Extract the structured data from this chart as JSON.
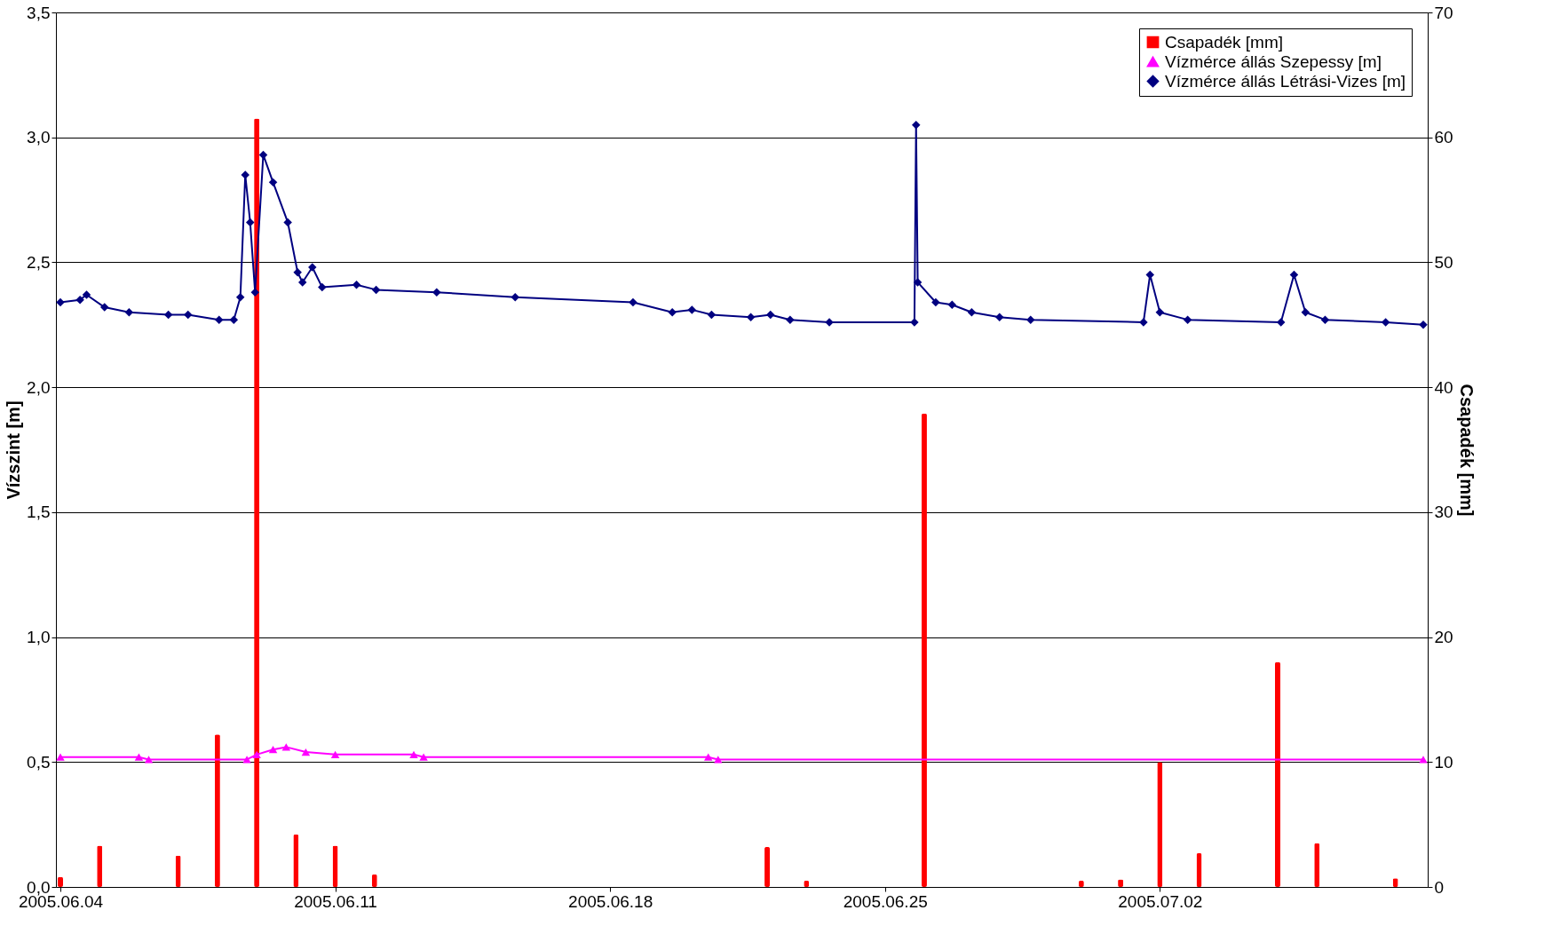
{
  "chart_data": {
    "type": "line",
    "xlim": [
      "2005-06-04",
      "2005-07-08T17:00"
    ],
    "xticks": [
      {
        "value": "2005-06-04",
        "label": "2005.06.04"
      },
      {
        "value": "2005-06-11",
        "label": "2005.06.11"
      },
      {
        "value": "2005-06-18",
        "label": "2005.06.18"
      },
      {
        "value": "2005-06-25",
        "label": "2005.06.25"
      },
      {
        "value": "2005-07-02",
        "label": "2005.07.02"
      }
    ],
    "ylim": [
      0,
      3.5
    ],
    "yticks": [
      {
        "value": 0,
        "label": "0,0"
      },
      {
        "value": 0.5,
        "label": "0,5"
      },
      {
        "value": 1,
        "label": "1,0"
      },
      {
        "value": 1.5,
        "label": "1,5"
      },
      {
        "value": 2,
        "label": "2,0"
      },
      {
        "value": 2.5,
        "label": "2,5"
      },
      {
        "value": 3,
        "label": "3,0"
      },
      {
        "value": 3.5,
        "label": "3,5"
      }
    ],
    "y2lim": [
      0,
      70
    ],
    "y2ticks": [
      0,
      10,
      20,
      30,
      40,
      50,
      60,
      70
    ],
    "ylabel": "Vízszint [m]",
    "y2label": "Csapadék [mm]",
    "grid": "y",
    "legend": "top right",
    "series": [
      {
        "name": "Csapadék [mm]",
        "type": "bar",
        "axis": "y2",
        "color": "#ff0000",
        "marker": "square",
        "x": [
          "2005-06-04",
          "2005-06-05",
          "2005-06-07",
          "2005-06-08",
          "2005-06-09",
          "2005-06-10",
          "2005-06-11",
          "2005-06-12",
          "2005-06-22",
          "2005-06-23",
          "2005-06-26",
          "2005-06-30",
          "2005-07-01",
          "2005-07-02",
          "2005-07-03",
          "2005-07-05",
          "2005-07-06",
          "2005-07-08"
        ],
        "values": [
          0.8,
          3.3,
          2.5,
          12.2,
          61.5,
          4.2,
          3.3,
          1.0,
          3.2,
          0.5,
          37.9,
          0.5,
          0.6,
          10,
          2.7,
          18,
          3.5,
          0.7
        ]
      },
      {
        "name": "Vízmérce állás Szepessy [m]",
        "axis": "y",
        "color": "#ff00ff",
        "marker": "triangle",
        "x": [
          "2005-06-04T00:00",
          "2005-06-06T00:00",
          "2005-06-06T06:00",
          "2005-06-08T18:00",
          "2005-06-09T00:00",
          "2005-06-09T10:00",
          "2005-06-09T18:00",
          "2005-06-10T06:00",
          "2005-06-11T00:00",
          "2005-06-13T00:00",
          "2005-06-13T06:00",
          "2005-06-20T12:00",
          "2005-06-20T18:00",
          "2005-07-08T17:00"
        ],
        "values": [
          0.52,
          0.52,
          0.51,
          0.51,
          0.53,
          0.55,
          0.56,
          0.54,
          0.53,
          0.53,
          0.52,
          0.52,
          0.51,
          0.51
        ]
      },
      {
        "name": "Vízmérce állás Létrási-Vizes [m]",
        "axis": "y",
        "color": "#000080",
        "marker": "diamond",
        "x": [
          "2005-06-04T00:00",
          "2005-06-04T12:00",
          "2005-06-04T16:00",
          "2005-06-05T03:00",
          "2005-06-05T18:00",
          "2005-06-06T18:00",
          "2005-06-07T06:00",
          "2005-06-08T01:00",
          "2005-06-08T10:00",
          "2005-06-08T14:00",
          "2005-06-08T17:00",
          "2005-06-08T20:00",
          "2005-06-08T23:00",
          "2005-06-09T04:00",
          "2005-06-09T10:00",
          "2005-06-09T19:00",
          "2005-06-10T01:00",
          "2005-06-10T04:00",
          "2005-06-10T10:00",
          "2005-06-10T16:00",
          "2005-06-11T13:00",
          "2005-06-12T01:00",
          "2005-06-13T14:00",
          "2005-06-15T14:00",
          "2005-06-18T14:00",
          "2005-06-19T14:00",
          "2005-06-20T02:00",
          "2005-06-20T14:00",
          "2005-06-21T14:00",
          "2005-06-22T02:00",
          "2005-06-22T14:00",
          "2005-06-23T14:00",
          "2005-06-25T18:00",
          "2005-06-25T19:00",
          "2005-06-25T20:00",
          "2005-06-26T07:00",
          "2005-06-26T17:00",
          "2005-06-27T05:00",
          "2005-06-27T22:00",
          "2005-06-28T17:00",
          "2005-07-01T14:00",
          "2005-07-01T18:00",
          "2005-07-02T00:00",
          "2005-07-02T17:00",
          "2005-07-05T02:00",
          "2005-07-05T10:00",
          "2005-07-05T17:00",
          "2005-07-06T05:00",
          "2005-07-07T18:00",
          "2005-07-08T17:00"
        ],
        "values": [
          2.34,
          2.35,
          2.37,
          2.32,
          2.3,
          2.29,
          2.29,
          2.27,
          2.27,
          2.36,
          2.85,
          2.66,
          2.38,
          2.93,
          2.82,
          2.66,
          2.46,
          2.42,
          2.48,
          2.4,
          2.41,
          2.39,
          2.38,
          2.36,
          2.34,
          2.3,
          2.31,
          2.29,
          2.28,
          2.29,
          2.27,
          2.26,
          2.26,
          3.05,
          2.42,
          2.34,
          2.33,
          2.3,
          2.28,
          2.27,
          2.26,
          2.45,
          2.3,
          2.27,
          2.26,
          2.45,
          2.3,
          2.27,
          2.26,
          2.25
        ]
      }
    ]
  }
}
